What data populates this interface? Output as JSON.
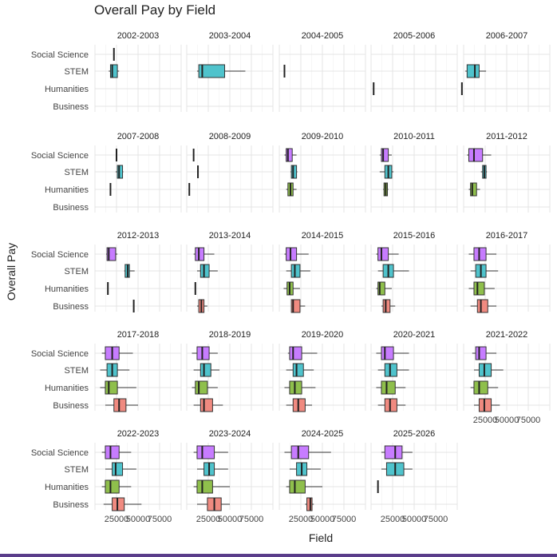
{
  "chart_data": {
    "type": "boxplot",
    "title": "Overall Pay by Field",
    "xlabel": "Field",
    "ylabel": "Overall Pay",
    "categories": [
      "Social Science",
      "STEM",
      "Humanities",
      "Business"
    ],
    "xlim": [
      0,
      100000
    ],
    "xticks": [
      25000,
      50000,
      75000
    ],
    "xtick_labels": [
      "25000",
      "50000",
      "75000"
    ],
    "grid": true,
    "legend": "none",
    "colors": {
      "Social Science": "#c77cff",
      "STEM": "#4fc3cc",
      "Humanities": "#8fbf4c",
      "Business": "#f08a80"
    },
    "panels": [
      {
        "label": "2002-2003",
        "boxes": {
          "Social Science": [
            22000,
            22000,
            22000,
            22000,
            22000
          ],
          "STEM": [
            16000,
            18000,
            20000,
            26000,
            28000
          ]
        }
      },
      {
        "label": "2003-2004",
        "boxes": {
          "STEM": [
            12000,
            14000,
            18000,
            44000,
            68000
          ]
        }
      },
      {
        "label": "2004-2005",
        "boxes": {
          "STEM": [
            6000,
            6000,
            6000,
            6000,
            6000
          ]
        }
      },
      {
        "label": "2005-2006",
        "boxes": {
          "Humanities": [
            3000,
            3000,
            3000,
            3000,
            3000
          ]
        }
      },
      {
        "label": "2006-2007",
        "boxes": {
          "STEM": [
            2000,
            4000,
            13000,
            18000,
            26000
          ],
          "Humanities": [
            -2000,
            -2000,
            -2000,
            -2000,
            -2000
          ]
        }
      },
      {
        "label": "2007-2008",
        "boxes": {
          "Social Science": [
            25000,
            25000,
            25000,
            25000,
            25000
          ],
          "STEM": [
            24000,
            26000,
            28000,
            32000,
            33000
          ],
          "Humanities": [
            18000,
            18000,
            18000,
            18000,
            18000
          ]
        }
      },
      {
        "label": "2008-2009",
        "boxes": {
          "Social Science": [
            8000,
            8000,
            8000,
            8000,
            8000
          ],
          "STEM": [
            13000,
            13000,
            13000,
            13000,
            13000
          ],
          "Humanities": [
            3000,
            3000,
            3000,
            3000,
            3000
          ]
        }
      },
      {
        "label": "2009-2010",
        "boxes": {
          "Social Science": [
            6000,
            8000,
            10000,
            15000,
            20000
          ],
          "STEM": [
            13000,
            14000,
            16000,
            20000,
            21000
          ],
          "Humanities": [
            8000,
            10000,
            13000,
            16000,
            20000
          ]
        }
      },
      {
        "label": "2010-2011",
        "boxes": {
          "Social Science": [
            10000,
            12000,
            14000,
            20000,
            24000
          ],
          "STEM": [
            10000,
            16000,
            20000,
            24000,
            26000
          ],
          "Humanities": [
            14000,
            15000,
            17000,
            19000,
            20000
          ]
        }
      },
      {
        "label": "2011-2012",
        "boxes": {
          "Social Science": [
            4000,
            6000,
            12000,
            22000,
            32000
          ],
          "STEM": [
            20000,
            22000,
            24000,
            26000,
            27000
          ],
          "Humanities": [
            6000,
            8000,
            10000,
            15000,
            19000
          ]
        }
      },
      {
        "label": "2012-2013",
        "boxes": {
          "Social Science": [
            13000,
            14000,
            16000,
            24000,
            26000
          ],
          "STEM": [
            34000,
            35000,
            38000,
            40000,
            46000
          ],
          "Humanities": [
            15000,
            15000,
            15000,
            15000,
            15000
          ],
          "Business": [
            45000,
            45000,
            45000,
            45000,
            45000
          ]
        }
      },
      {
        "label": "2013-2014",
        "boxes": {
          "Social Science": [
            8000,
            10000,
            14000,
            20000,
            32000
          ],
          "STEM": [
            12000,
            16000,
            20000,
            26000,
            36000
          ],
          "Humanities": [
            10000,
            10000,
            10000,
            10000,
            10000
          ],
          "Business": [
            12000,
            14000,
            17000,
            20000,
            24000
          ]
        }
      },
      {
        "label": "2014-2015",
        "boxes": {
          "Social Science": [
            6000,
            8000,
            13000,
            20000,
            34000
          ],
          "STEM": [
            8000,
            14000,
            18000,
            24000,
            36000
          ],
          "Humanities": [
            5000,
            9000,
            12000,
            16000,
            24000
          ],
          "Business": [
            14000,
            14000,
            16000,
            24000,
            30000
          ]
        }
      },
      {
        "label": "2015-2016",
        "boxes": {
          "Social Science": [
            6000,
            8000,
            12000,
            20000,
            32000
          ],
          "STEM": [
            8000,
            14000,
            20000,
            26000,
            44000
          ],
          "Humanities": [
            6000,
            8000,
            10000,
            16000,
            24000
          ],
          "Business": [
            12000,
            14000,
            17000,
            22000,
            28000
          ]
        }
      },
      {
        "label": "2016-2017",
        "boxes": {
          "Social Science": [
            6000,
            12000,
            18000,
            26000,
            38000
          ],
          "STEM": [
            8000,
            14000,
            20000,
            26000,
            40000
          ],
          "Humanities": [
            6000,
            12000,
            16000,
            24000,
            36000
          ],
          "Business": [
            8000,
            16000,
            20000,
            28000,
            38000
          ]
        }
      },
      {
        "label": "2017-2018",
        "boxes": {
          "Social Science": [
            8000,
            12000,
            20000,
            28000,
            44000
          ],
          "STEM": [
            6000,
            14000,
            20000,
            26000,
            40000
          ],
          "Humanities": [
            6000,
            12000,
            16000,
            26000,
            48000
          ],
          "Business": [
            12000,
            22000,
            28000,
            36000,
            50000
          ]
        }
      },
      {
        "label": "2018-2019",
        "boxes": {
          "Social Science": [
            6000,
            12000,
            18000,
            26000,
            36000
          ],
          "STEM": [
            8000,
            16000,
            20000,
            28000,
            38000
          ],
          "Humanities": [
            6000,
            10000,
            14000,
            24000,
            36000
          ],
          "Business": [
            8000,
            16000,
            20000,
            30000,
            42000
          ]
        }
      },
      {
        "label": "2019-2020",
        "boxes": {
          "Social Science": [
            10000,
            12000,
            16000,
            26000,
            44000
          ],
          "STEM": [
            8000,
            16000,
            20000,
            28000,
            40000
          ],
          "Humanities": [
            6000,
            12000,
            18000,
            26000,
            42000
          ],
          "Business": [
            8000,
            16000,
            22000,
            30000,
            38000
          ]
        }
      },
      {
        "label": "2020-2021",
        "boxes": {
          "Social Science": [
            6000,
            12000,
            16000,
            26000,
            44000
          ],
          "STEM": [
            8000,
            16000,
            22000,
            30000,
            44000
          ],
          "Humanities": [
            6000,
            12000,
            18000,
            28000,
            40000
          ],
          "Business": [
            8000,
            16000,
            22000,
            30000,
            40000
          ]
        }
      },
      {
        "label": "2021-2022",
        "boxes": {
          "Social Science": [
            10000,
            14000,
            18000,
            26000,
            38000
          ],
          "STEM": [
            12000,
            18000,
            24000,
            32000,
            46000
          ],
          "Humanities": [
            8000,
            12000,
            18000,
            28000,
            40000
          ],
          "Business": [
            12000,
            18000,
            24000,
            32000,
            42000
          ]
        }
      },
      {
        "label": "2022-2023",
        "boxes": {
          "Social Science": [
            8000,
            12000,
            18000,
            28000,
            42000
          ],
          "STEM": [
            12000,
            20000,
            24000,
            32000,
            48000
          ],
          "Humanities": [
            8000,
            12000,
            18000,
            28000,
            42000
          ],
          "Business": [
            10000,
            20000,
            26000,
            34000,
            54000
          ]
        }
      },
      {
        "label": "2023-2024",
        "boxes": {
          "Social Science": [
            8000,
            12000,
            18000,
            32000,
            48000
          ],
          "STEM": [
            12000,
            20000,
            26000,
            32000,
            48000
          ],
          "Humanities": [
            8000,
            12000,
            18000,
            30000,
            50000
          ],
          "Business": [
            12000,
            24000,
            32000,
            40000,
            50000
          ]
        }
      },
      {
        "label": "2024-2025",
        "boxes": {
          "Social Science": [
            6000,
            14000,
            22000,
            34000,
            60000
          ],
          "STEM": [
            12000,
            20000,
            26000,
            32000,
            48000
          ],
          "Humanities": [
            8000,
            12000,
            18000,
            30000,
            50000
          ],
          "Business": [
            30000,
            32000,
            36000,
            38000,
            40000
          ]
        }
      },
      {
        "label": "2025-2026",
        "boxes": {
          "Social Science": [
            12000,
            16000,
            28000,
            36000,
            48000
          ],
          "STEM": [
            12000,
            18000,
            28000,
            38000,
            48000
          ],
          "Humanities": [
            8000,
            8000,
            8000,
            8000,
            8000
          ]
        }
      }
    ]
  }
}
